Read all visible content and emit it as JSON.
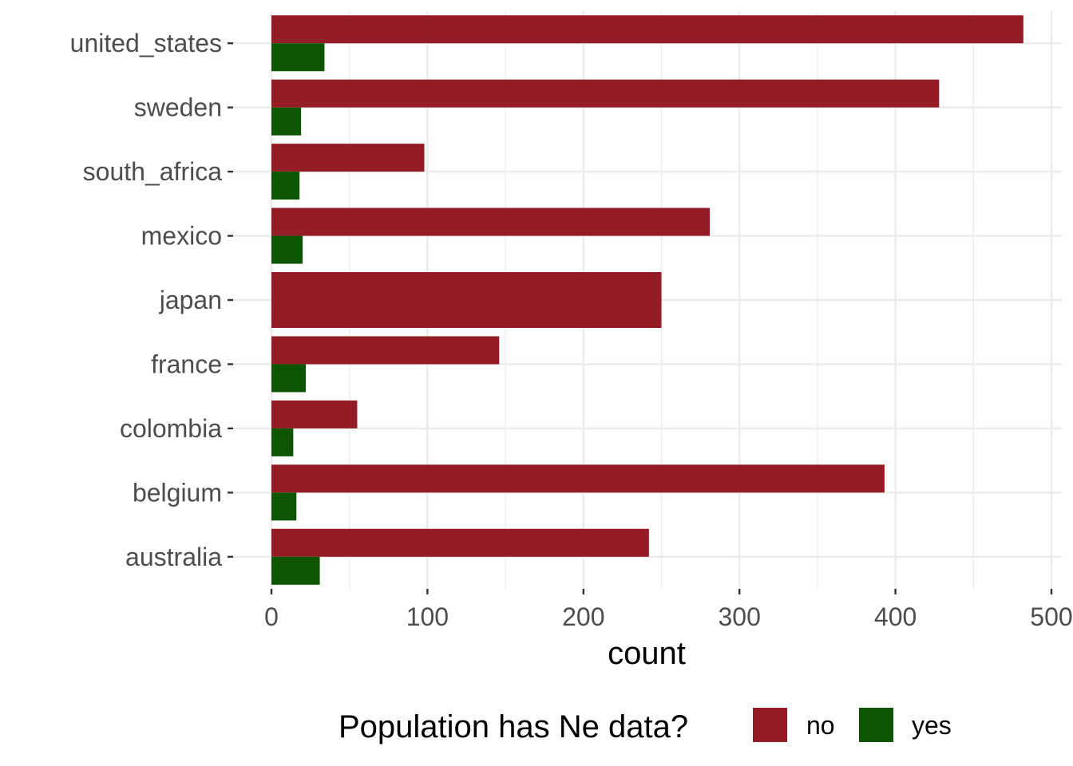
{
  "chart_data": {
    "type": "bar",
    "orientation": "horizontal",
    "grouping": "dodge",
    "title": "",
    "xlabel": "count",
    "ylabel": "",
    "xlim": [
      0,
      500
    ],
    "x_ticks": [
      0,
      100,
      200,
      300,
      400,
      500
    ],
    "grid": true,
    "legend_position": "bottom",
    "legend_title": "Population has Ne data?",
    "categories": [
      "united_states",
      "sweden",
      "south_africa",
      "mexico",
      "japan",
      "france",
      "colombia",
      "belgium",
      "australia"
    ],
    "series": [
      {
        "name": "no",
        "color": "#941c24",
        "values": [
          482,
          428,
          98,
          281,
          250,
          146,
          55,
          393,
          242
        ]
      },
      {
        "name": "yes",
        "color": "#0d5502",
        "values": [
          34,
          19,
          18,
          20,
          null,
          22,
          14,
          16,
          31
        ]
      }
    ]
  }
}
